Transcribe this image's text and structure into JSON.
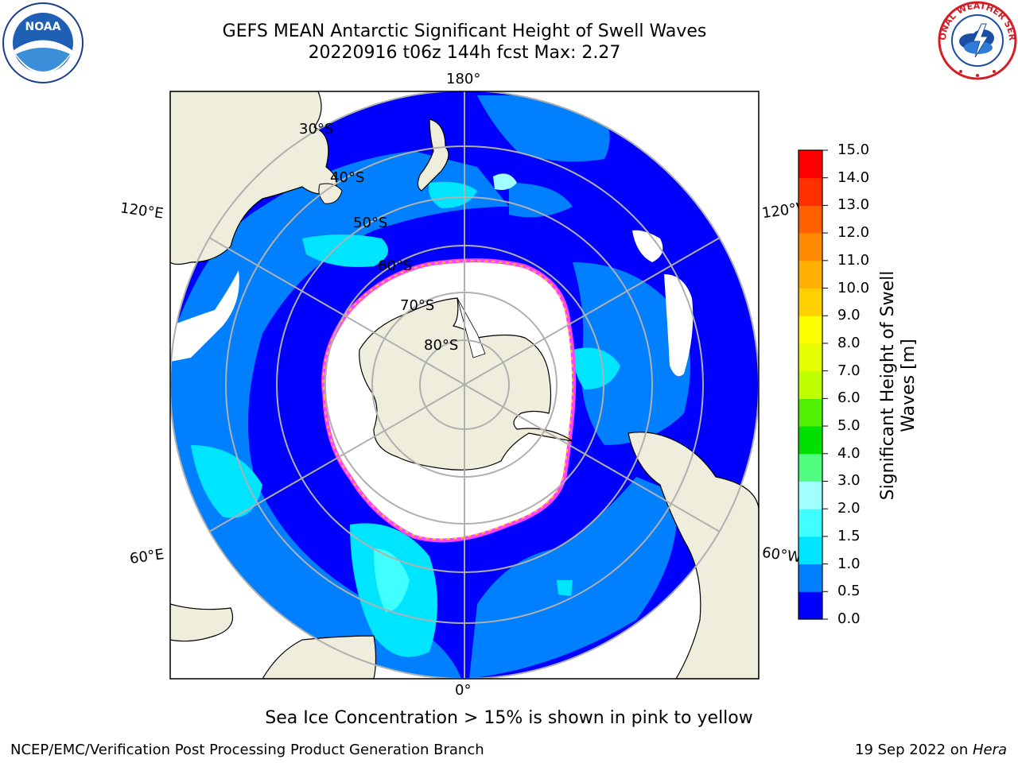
{
  "title": {
    "line1": "GEFS MEAN Antarctic Significant Height of Swell Waves",
    "line2": "20220916 t06z 144h fcst   Max: 2.27"
  },
  "map": {
    "lon_labels": {
      "top": "180°",
      "bottom": "0°",
      "upper_left": "120°E",
      "upper_right": "120°W",
      "lower_left": "60°E",
      "lower_right": "60°W"
    },
    "lat_labels": [
      "30°S",
      "40°S",
      "50°S",
      "60°S",
      "70°S",
      "80°S"
    ]
  },
  "colorbar": {
    "label": "Significant Height of Swell Waves [m]",
    "ticks": [
      "0.0",
      "0.5",
      "1.0",
      "1.5",
      "2.0",
      "3.0",
      "4.0",
      "5.0",
      "6.0",
      "7.0",
      "8.0",
      "9.0",
      "10.0",
      "11.0",
      "12.0",
      "13.0",
      "14.0",
      "15.0"
    ],
    "colors": [
      "#0000ff",
      "#0080ff",
      "#00e5ff",
      "#40ffff",
      "#a0ffff",
      "#50ff80",
      "#00e000",
      "#50f000",
      "#c0ff00",
      "#e6ff00",
      "#ffff00",
      "#ffd000",
      "#ffb000",
      "#ff8a00",
      "#ff6000",
      "#ff3000",
      "#ff0000"
    ]
  },
  "note": "Sea Ice Concentration > 15% is shown in pink to yellow",
  "footer": {
    "left": "NCEP/EMC/Verification Post Processing Product Generation Branch",
    "date": "19 Sep 2022 on ",
    "machine": "Hera"
  },
  "logos": {
    "left": "NOAA",
    "right": "NATIONAL WEATHER SERVICE"
  }
}
